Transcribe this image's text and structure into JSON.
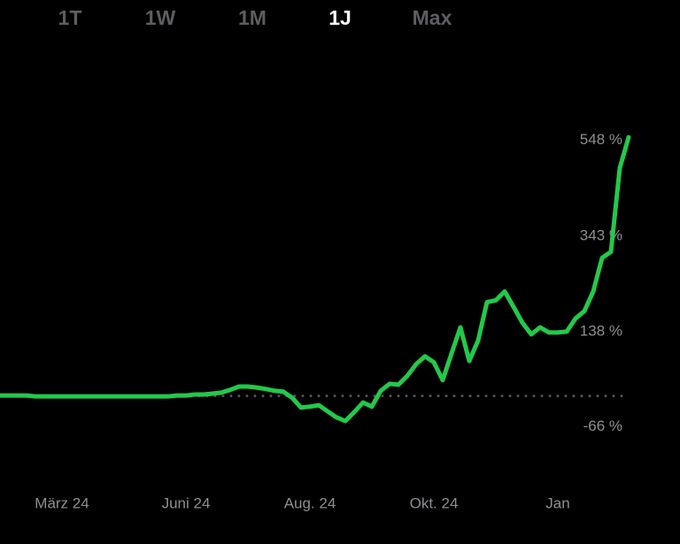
{
  "tabs": [
    "1T",
    "1W",
    "1M",
    "1J",
    "Max"
  ],
  "active_tab": 3,
  "chart_data": {
    "type": "line",
    "color": "#23c94a",
    "baseline": 0,
    "values": [
      1,
      1,
      1,
      1,
      -1,
      -1,
      -1,
      -1,
      -1,
      -1,
      -1,
      -1,
      -1,
      -1,
      -1,
      -1,
      -1,
      -1,
      -1,
      -1,
      1,
      1,
      3,
      3,
      5,
      7,
      13,
      20,
      20,
      18,
      15,
      11,
      9,
      -4,
      -25,
      -23,
      -20,
      -33,
      -46,
      -54,
      -35,
      -14,
      -23,
      11,
      26,
      24,
      43,
      68,
      85,
      72,
      34,
      91,
      147,
      75,
      119,
      201,
      205,
      224,
      191,
      157,
      132,
      147,
      136,
      136,
      138,
      166,
      182,
      224,
      296,
      309,
      489,
      555
    ],
    "xlim": [
      0,
      71
    ],
    "xticks": [
      {
        "value": 7,
        "label": "März 24"
      },
      {
        "value": 21,
        "label": "Juni 24"
      },
      {
        "value": 35,
        "label": "Aug. 24"
      },
      {
        "value": 49,
        "label": "Okt. 24"
      },
      {
        "value": 63,
        "label": "Jan"
      }
    ],
    "ylim": [
      -200,
      650
    ],
    "yticks": [
      {
        "value": 548,
        "label": "548 %"
      },
      {
        "value": 343,
        "label": "343 %"
      },
      {
        "value": 138,
        "label": "138 %"
      },
      {
        "value": -66,
        "label": "-66 %"
      }
    ]
  }
}
